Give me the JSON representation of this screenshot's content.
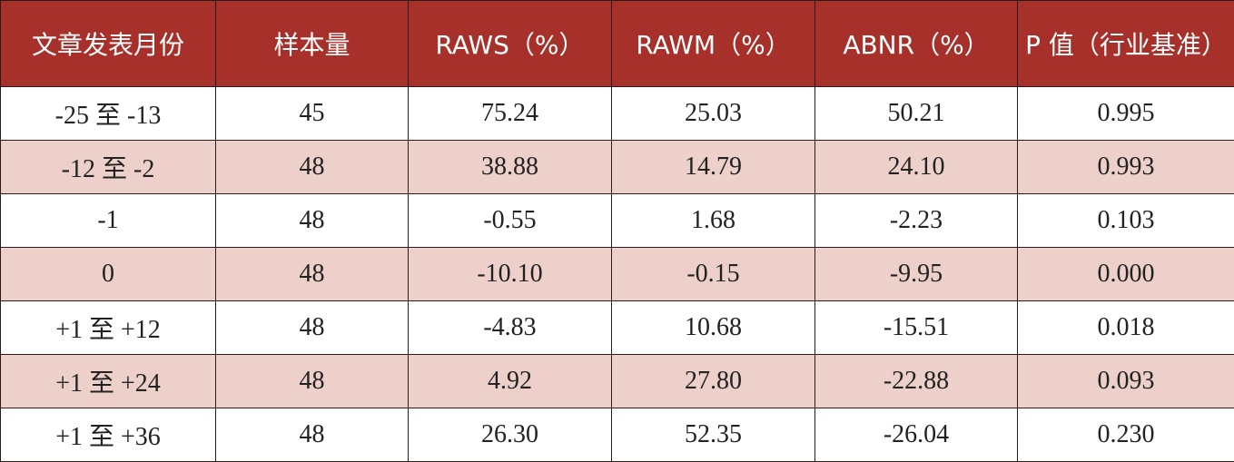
{
  "table": {
    "headers": [
      "文章发表月份",
      "样本量",
      "RAWS（%）",
      "RAWM（%）",
      "ABNR（%）",
      "P 值（行业基准）"
    ],
    "rows": [
      [
        "-25 至 -13",
        "45",
        "75.24",
        "25.03",
        "50.21",
        "0.995"
      ],
      [
        "-12 至 -2",
        "48",
        "38.88",
        "14.79",
        "24.10",
        "0.993"
      ],
      [
        "-1",
        "48",
        "-0.55",
        "1.68",
        "-2.23",
        "0.103"
      ],
      [
        "0",
        "48",
        "-10.10",
        "-0.15",
        "-9.95",
        "0.000"
      ],
      [
        "+1 至 +12",
        "48",
        "-4.83",
        "10.68",
        "-15.51",
        "0.018"
      ],
      [
        "+1 至 +24",
        "48",
        "4.92",
        "27.80",
        "-22.88",
        "0.093"
      ],
      [
        "+1 至 +36",
        "48",
        "26.30",
        "52.35",
        "-26.04",
        "0.230"
      ]
    ]
  },
  "colors": {
    "header_bg": "#a8302b",
    "header_text": "#ffffff",
    "stripe_bg": "#ecd0c9",
    "row_bg": "#ffffff"
  }
}
